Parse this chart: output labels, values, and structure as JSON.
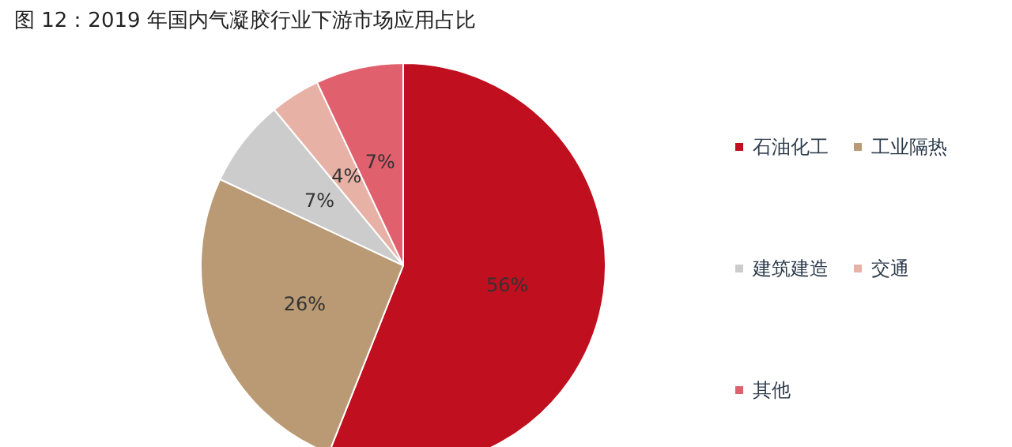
{
  "chart_data": {
    "type": "pie",
    "title": "图 12：2019 年国内气凝胶行业下游市场应用占比",
    "categories": [
      "石油化工",
      "工业隔热",
      "建筑建造",
      "交通",
      "其他"
    ],
    "values": [
      56,
      26,
      7,
      4,
      7
    ],
    "colors": [
      "#c00f1e",
      "#b99a74",
      "#cccccc",
      "#e8b1a6",
      "#e0606e"
    ],
    "value_labels": [
      "56%",
      "26%",
      "7%",
      "4%",
      "7%"
    ],
    "legend": "right"
  }
}
